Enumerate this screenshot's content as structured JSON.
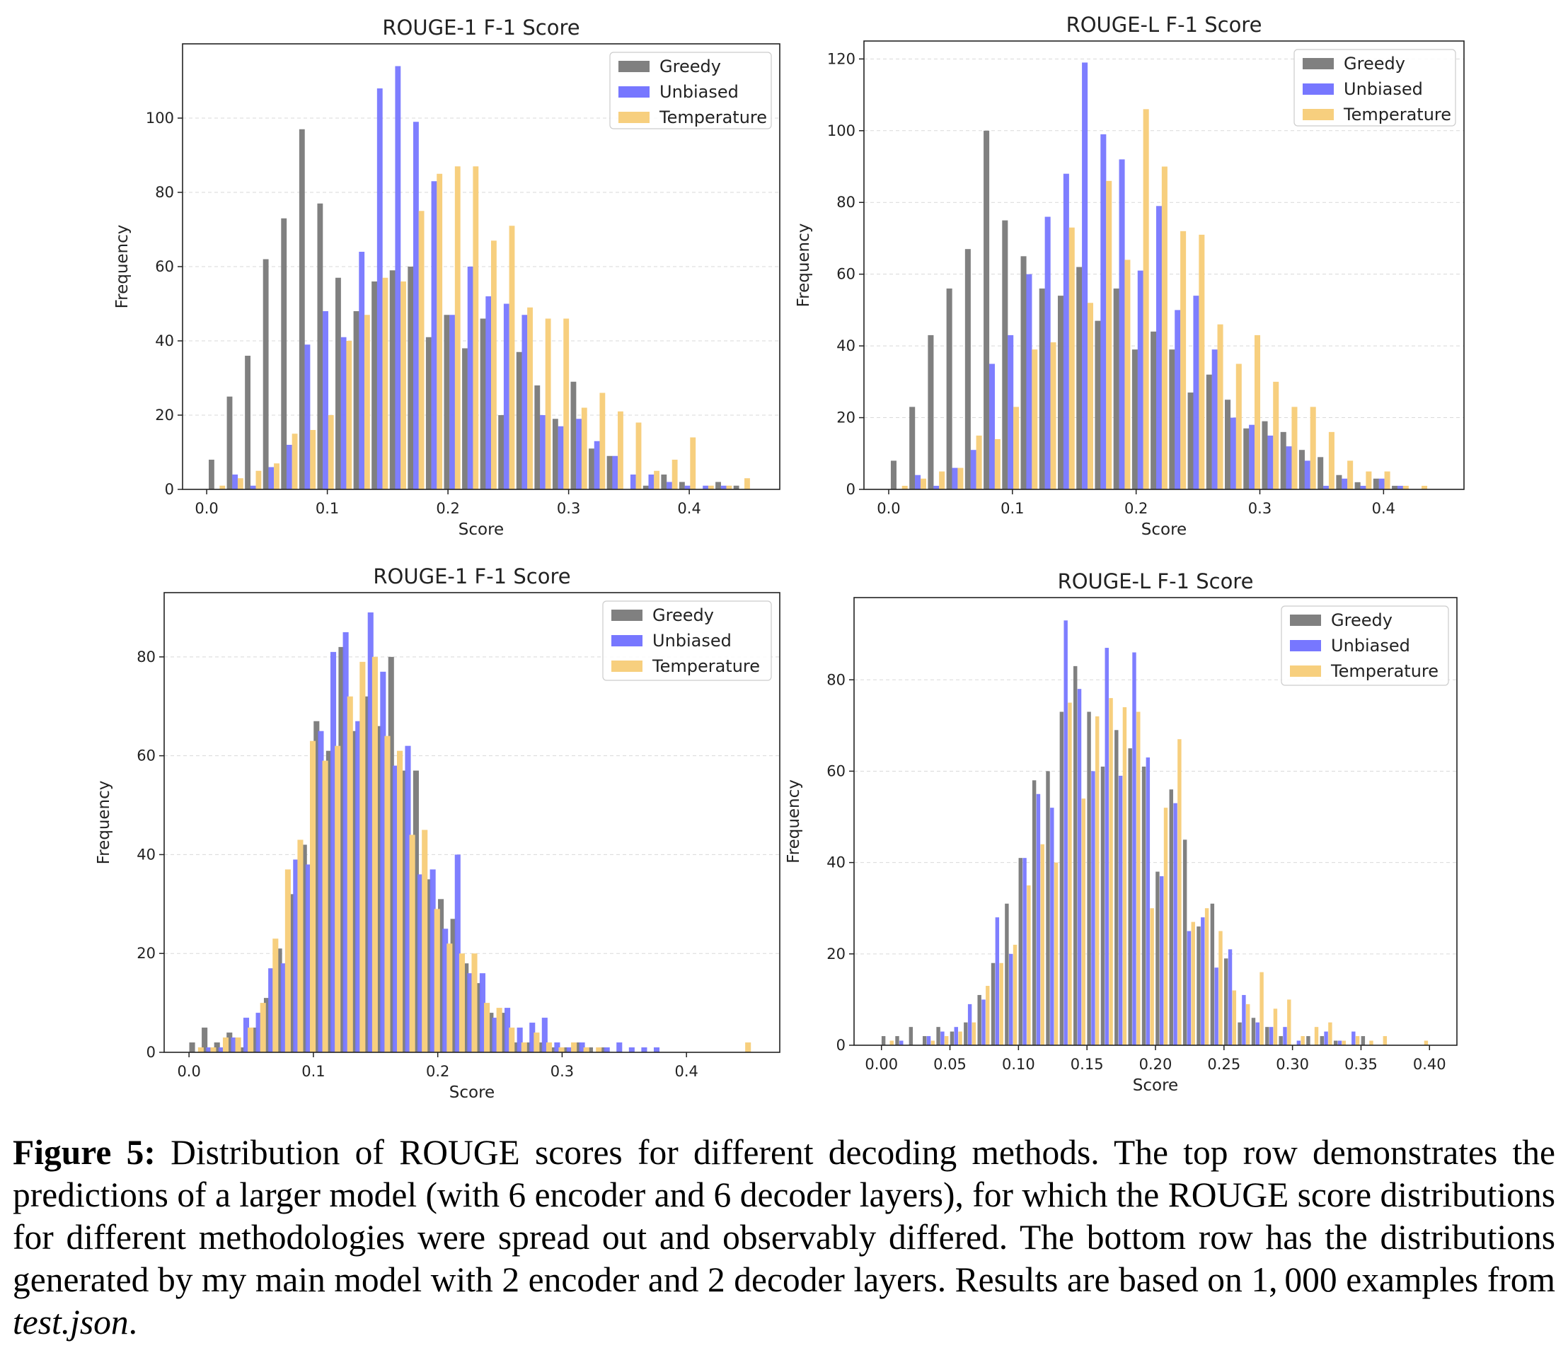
{
  "chart_data": [
    {
      "type": "bar",
      "title": "ROUGE-1 F-1 Score",
      "xlabel": "Score",
      "ylabel": "Frequency",
      "xlim": [
        -0.02,
        0.475
      ],
      "ylim": [
        0,
        120
      ],
      "xticks": [
        0.0,
        0.1,
        0.2,
        0.3,
        0.4
      ],
      "xtick_labels": [
        "0.0",
        "0.1",
        "0.2",
        "0.3",
        "0.4"
      ],
      "yticks": [
        0,
        20,
        40,
        60,
        80,
        100
      ],
      "grid": true,
      "legend": "top-right",
      "series": [
        {
          "name": "Greedy",
          "color": "#808080",
          "x": [
            0.004,
            0.019,
            0.034,
            0.049,
            0.064,
            0.079,
            0.094,
            0.109,
            0.124,
            0.139,
            0.154,
            0.169,
            0.184,
            0.199,
            0.214,
            0.229,
            0.244,
            0.259,
            0.274,
            0.289,
            0.304,
            0.319,
            0.334,
            0.349,
            0.364,
            0.379,
            0.394,
            0.409,
            0.424,
            0.439
          ],
          "values": [
            8,
            25,
            36,
            62,
            73,
            97,
            77,
            57,
            48,
            56,
            59,
            60,
            41,
            47,
            38,
            46,
            20,
            37,
            28,
            19,
            29,
            11,
            9,
            0,
            1,
            4,
            2,
            0,
            2,
            1
          ]
        },
        {
          "name": "Unbiased",
          "color": "#7777ff",
          "x": [
            0.0085,
            0.0235,
            0.0385,
            0.0535,
            0.0685,
            0.0835,
            0.0985,
            0.1135,
            0.1285,
            0.1435,
            0.1585,
            0.1735,
            0.1885,
            0.2035,
            0.2185,
            0.2335,
            0.2485,
            0.2635,
            0.2785,
            0.2935,
            0.3085,
            0.3235,
            0.3385,
            0.3535,
            0.3685,
            0.3835,
            0.3985,
            0.4135,
            0.4285,
            0.4435
          ],
          "values": [
            0,
            4,
            1,
            6,
            12,
            39,
            48,
            41,
            64,
            108,
            114,
            99,
            83,
            47,
            60,
            52,
            50,
            47,
            20,
            17,
            19,
            13,
            9,
            4,
            4,
            2,
            1,
            1,
            1,
            0
          ]
        },
        {
          "name": "Temperature",
          "color": "#f7cf7e",
          "x": [
            0.013,
            0.028,
            0.043,
            0.058,
            0.073,
            0.088,
            0.103,
            0.118,
            0.133,
            0.148,
            0.163,
            0.178,
            0.193,
            0.208,
            0.223,
            0.238,
            0.253,
            0.268,
            0.283,
            0.298,
            0.313,
            0.328,
            0.343,
            0.358,
            0.373,
            0.388,
            0.403,
            0.418,
            0.433,
            0.448
          ],
          "values": [
            1,
            3,
            5,
            7,
            15,
            16,
            20,
            40,
            47,
            57,
            56,
            75,
            85,
            87,
            87,
            67,
            71,
            49,
            46,
            46,
            22,
            26,
            21,
            18,
            5,
            8,
            14,
            1,
            1,
            3
          ]
        }
      ]
    },
    {
      "type": "bar",
      "title": "ROUGE-L F-1 Score",
      "xlabel": "Score",
      "ylabel": "Frequency",
      "xlim": [
        -0.02,
        0.465
      ],
      "ylim": [
        0,
        125
      ],
      "xticks": [
        0.0,
        0.1,
        0.2,
        0.3,
        0.4
      ],
      "xtick_labels": [
        "0.0",
        "0.1",
        "0.2",
        "0.3",
        "0.4"
      ],
      "yticks": [
        0,
        20,
        40,
        60,
        80,
        100,
        120
      ],
      "grid": true,
      "legend": "top-right",
      "series": [
        {
          "name": "Greedy",
          "color": "#808080",
          "x": [
            0.004,
            0.019,
            0.034,
            0.049,
            0.064,
            0.079,
            0.094,
            0.109,
            0.124,
            0.139,
            0.154,
            0.169,
            0.184,
            0.199,
            0.214,
            0.229,
            0.244,
            0.259,
            0.274,
            0.289,
            0.304,
            0.319,
            0.334,
            0.349,
            0.364,
            0.379,
            0.394,
            0.409,
            0.424,
            0.439
          ],
          "values": [
            8,
            23,
            43,
            56,
            67,
            100,
            75,
            65,
            56,
            54,
            62,
            47,
            56,
            39,
            44,
            39,
            27,
            32,
            25,
            17,
            19,
            16,
            11,
            9,
            4,
            2,
            3,
            1,
            0,
            0
          ]
        },
        {
          "name": "Unbiased",
          "color": "#7777ff",
          "x": [
            0.0085,
            0.0235,
            0.0385,
            0.0535,
            0.0685,
            0.0835,
            0.0985,
            0.1135,
            0.1285,
            0.1435,
            0.1585,
            0.1735,
            0.1885,
            0.2035,
            0.2185,
            0.2335,
            0.2485,
            0.2635,
            0.2785,
            0.2935,
            0.3085,
            0.3235,
            0.3385,
            0.3535,
            0.3685,
            0.3835,
            0.3985,
            0.4135,
            0.4285,
            0.4435
          ],
          "values": [
            0,
            4,
            1,
            6,
            11,
            35,
            43,
            60,
            76,
            88,
            119,
            99,
            92,
            61,
            79,
            50,
            54,
            39,
            20,
            18,
            15,
            12,
            8,
            1,
            3,
            1,
            3,
            1,
            0,
            0
          ]
        },
        {
          "name": "Temperature",
          "color": "#f7cf7e",
          "x": [
            0.013,
            0.028,
            0.043,
            0.058,
            0.073,
            0.088,
            0.103,
            0.118,
            0.133,
            0.148,
            0.163,
            0.178,
            0.193,
            0.208,
            0.223,
            0.238,
            0.253,
            0.268,
            0.283,
            0.298,
            0.313,
            0.328,
            0.343,
            0.358,
            0.373,
            0.388,
            0.403,
            0.418,
            0.433,
            0.448
          ],
          "values": [
            1,
            3,
            5,
            6,
            15,
            14,
            23,
            39,
            41,
            73,
            52,
            86,
            64,
            106,
            90,
            72,
            71,
            46,
            35,
            43,
            30,
            23,
            23,
            16,
            8,
            5,
            5,
            1,
            1,
            0
          ]
        }
      ]
    },
    {
      "type": "bar",
      "title": "ROUGE-1 F-1 Score",
      "xlabel": "Score",
      "ylabel": "Frequency",
      "xlim": [
        -0.02,
        0.475
      ],
      "ylim": [
        0,
        93
      ],
      "xticks": [
        0.0,
        0.1,
        0.2,
        0.3,
        0.4
      ],
      "xtick_labels": [
        "0.0",
        "0.1",
        "0.2",
        "0.3",
        "0.4"
      ],
      "yticks": [
        0,
        20,
        40,
        60,
        80
      ],
      "grid": true,
      "legend": "top-right",
      "series": [
        {
          "name": "Greedy",
          "color": "#808080",
          "x": [
            0.0025,
            0.0125,
            0.0225,
            0.0325,
            0.0425,
            0.0525,
            0.0625,
            0.0725,
            0.0825,
            0.0925,
            0.1025,
            0.1125,
            0.1225,
            0.1325,
            0.1425,
            0.1525,
            0.1625,
            0.1725,
            0.1825,
            0.1925,
            0.2025,
            0.2125,
            0.2225,
            0.2325,
            0.2425,
            0.2525,
            0.2625,
            0.2725,
            0.2825,
            0.2925,
            0.3025,
            0.3125,
            0.3225,
            0.3325,
            0.3425,
            0.3525,
            0.3625,
            0.3725,
            0.3825,
            0.3925
          ],
          "values": [
            2,
            5,
            2,
            4,
            1,
            5,
            11,
            21,
            32,
            42,
            67,
            61,
            82,
            65,
            72,
            66,
            80,
            57,
            57,
            35,
            31,
            27,
            18,
            14,
            8,
            8,
            2,
            2,
            2,
            1,
            1,
            2,
            1,
            1,
            0,
            0,
            0,
            0,
            0,
            0
          ]
        },
        {
          "name": "Unbiased",
          "color": "#7777ff",
          "x": [
            0.006,
            0.016,
            0.026,
            0.036,
            0.046,
            0.056,
            0.066,
            0.076,
            0.086,
            0.096,
            0.106,
            0.116,
            0.126,
            0.136,
            0.146,
            0.156,
            0.166,
            0.176,
            0.186,
            0.196,
            0.206,
            0.216,
            0.226,
            0.236,
            0.246,
            0.256,
            0.266,
            0.276,
            0.286,
            0.296,
            0.306,
            0.316,
            0.326,
            0.336,
            0.346,
            0.356,
            0.366,
            0.376,
            0.386,
            0.396
          ],
          "values": [
            0,
            1,
            1,
            3,
            7,
            8,
            17,
            18,
            39,
            38,
            65,
            81,
            85,
            67,
            89,
            77,
            58,
            62,
            36,
            37,
            25,
            40,
            16,
            16,
            7,
            9,
            5,
            6,
            7,
            2,
            1,
            2,
            0,
            1,
            2,
            1,
            1,
            1,
            0,
            0
          ]
        },
        {
          "name": "Temperature",
          "color": "#f7cf7e",
          "x": [
            0.0095,
            0.0195,
            0.0295,
            0.0395,
            0.0495,
            0.0595,
            0.0695,
            0.0795,
            0.0895,
            0.0995,
            0.1095,
            0.1195,
            0.1295,
            0.1395,
            0.1495,
            0.1595,
            0.1695,
            0.1795,
            0.1895,
            0.1995,
            0.2095,
            0.2195,
            0.2295,
            0.2395,
            0.2495,
            0.2595,
            0.2695,
            0.2795,
            0.2895,
            0.2995,
            0.3095,
            0.3195,
            0.3295,
            0.3395,
            0.3495,
            0.3595,
            0.3695,
            0.3795,
            0.3895,
            0.4495
          ],
          "values": [
            1,
            1,
            3,
            3,
            5,
            10,
            23,
            37,
            43,
            63,
            59,
            62,
            72,
            79,
            80,
            64,
            61,
            44,
            45,
            29,
            22,
            20,
            20,
            10,
            9,
            5,
            2,
            4,
            2,
            1,
            2,
            1,
            1,
            0,
            0,
            0,
            0,
            0,
            0,
            2
          ]
        }
      ]
    },
    {
      "type": "bar",
      "title": "ROUGE-L F-1 Score",
      "xlabel": "Score",
      "ylabel": "Frequency",
      "xlim": [
        -0.02,
        0.42
      ],
      "ylim": [
        0,
        98
      ],
      "xticks": [
        0.0,
        0.05,
        0.1,
        0.15,
        0.2,
        0.25,
        0.3,
        0.35,
        0.4
      ],
      "xtick_labels": [
        "0.00",
        "0.05",
        "0.10",
        "0.15",
        "0.20",
        "0.25",
        "0.30",
        "0.35",
        "0.40"
      ],
      "yticks": [
        0,
        20,
        40,
        60,
        80
      ],
      "grid": true,
      "legend": "top-right",
      "series": [
        {
          "name": "Greedy",
          "color": "#808080",
          "x": [
            0.0015,
            0.0115,
            0.0215,
            0.0315,
            0.0415,
            0.0515,
            0.0615,
            0.0715,
            0.0815,
            0.0915,
            0.1015,
            0.1115,
            0.1215,
            0.1315,
            0.1415,
            0.1515,
            0.1615,
            0.1715,
            0.1815,
            0.1915,
            0.2015,
            0.2115,
            0.2215,
            0.2315,
            0.2415,
            0.2515,
            0.2615,
            0.2715,
            0.2815,
            0.2915,
            0.3015,
            0.3115,
            0.3215,
            0.3315,
            0.3415,
            0.3515
          ],
          "values": [
            2,
            2,
            4,
            2,
            4,
            3,
            5,
            11,
            18,
            31,
            41,
            58,
            60,
            73,
            83,
            73,
            61,
            69,
            65,
            61,
            38,
            56,
            45,
            26,
            31,
            19,
            5,
            6,
            4,
            2,
            0,
            2,
            2,
            1,
            0,
            2
          ]
        },
        {
          "name": "Unbiased",
          "color": "#7777ff",
          "x": [
            0.0045,
            0.0145,
            0.0245,
            0.0345,
            0.0445,
            0.0545,
            0.0645,
            0.0745,
            0.0845,
            0.0945,
            0.1045,
            0.1145,
            0.1245,
            0.1345,
            0.1445,
            0.1545,
            0.1645,
            0.1745,
            0.1845,
            0.1945,
            0.2045,
            0.2145,
            0.2245,
            0.2345,
            0.2445,
            0.2545,
            0.2645,
            0.2745,
            0.2845,
            0.2945,
            0.3045,
            0.3145,
            0.3245,
            0.3345,
            0.3445,
            0.3545,
            0.3645
          ],
          "values": [
            0,
            1,
            0,
            2,
            3,
            4,
            9,
            10,
            28,
            20,
            41,
            55,
            52,
            93,
            78,
            60,
            87,
            59,
            86,
            63,
            37,
            53,
            25,
            28,
            17,
            21,
            11,
            5,
            4,
            4,
            1,
            0,
            3,
            1,
            3,
            0,
            0
          ]
        },
        {
          "name": "Temperature",
          "color": "#f7cf7e",
          "x": [
            0.0075,
            0.0175,
            0.0275,
            0.0375,
            0.0475,
            0.0575,
            0.0675,
            0.0775,
            0.0875,
            0.0975,
            0.1075,
            0.1175,
            0.1275,
            0.1375,
            0.1475,
            0.1575,
            0.1675,
            0.1775,
            0.1875,
            0.1975,
            0.2075,
            0.2175,
            0.2275,
            0.2375,
            0.2475,
            0.2575,
            0.2675,
            0.2775,
            0.2875,
            0.2975,
            0.3075,
            0.3175,
            0.3275,
            0.3375,
            0.3475,
            0.3575,
            0.3675,
            0.3775,
            0.3875,
            0.3975
          ],
          "values": [
            1,
            0,
            0,
            1,
            2,
            3,
            5,
            13,
            18,
            22,
            35,
            44,
            40,
            75,
            54,
            72,
            76,
            74,
            73,
            30,
            52,
            67,
            27,
            30,
            25,
            12,
            9,
            16,
            8,
            10,
            2,
            4,
            5,
            1,
            2,
            1,
            2,
            0,
            0,
            1
          ]
        }
      ]
    }
  ],
  "caption": {
    "label": "Figure 5:",
    "text_before_italic": " Distribution of ROUGE scores for different decoding methods. The top row demonstrates the predictions of a larger model (with 6 encoder and 6 decoder layers), for which the ROUGE score distributions for different methodologies were spread out and observably differed. The bottom row has the distributions generated by my main model with 2 encoder and 2 decoder layers. Results are based on 1, 000 examples from ",
    "italic": "test.json",
    "text_after_italic": "."
  }
}
